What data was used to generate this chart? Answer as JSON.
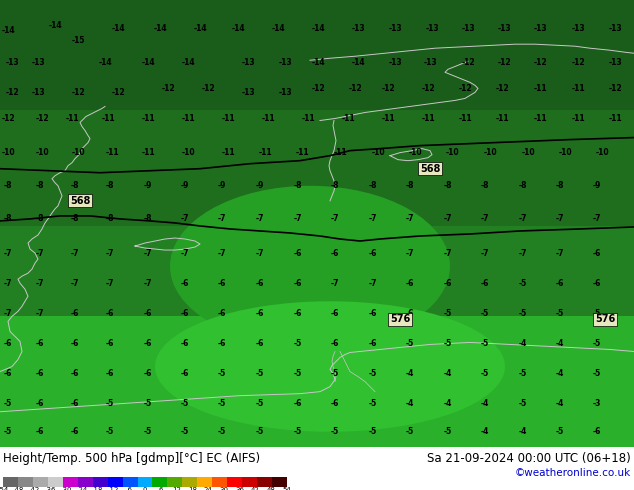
{
  "title_left": "Height/Temp. 500 hPa [gdmp][°C] EC (AIFS)",
  "title_right": "Sa 21-09-2024 00:00 UTC (06+18)",
  "credit": "©weatheronline.co.uk",
  "bg_dark": "#1a5c1a",
  "bg_mid": "#1e7a1e",
  "bg_light": "#22aa22",
  "colorbar_colors": [
    "#666666",
    "#888888",
    "#aaaaaa",
    "#cccccc",
    "#cc00cc",
    "#8800cc",
    "#4400cc",
    "#0000ff",
    "#0055ff",
    "#00aaff",
    "#00aa00",
    "#55aa00",
    "#aaaa00",
    "#ffaa00",
    "#ff5500",
    "#ff0000",
    "#cc0000",
    "#880000",
    "#440000"
  ],
  "coastline_color": "#c8c8c8",
  "border_color": "#c8c8c8",
  "contour_color": "#000000",
  "isoline_color": "#000000",
  "label_box_color": "#e8e8c0",
  "font_size_title": 8.5,
  "font_size_credit": 7.5,
  "figsize": [
    6.34,
    4.9
  ],
  "dpi": 100
}
